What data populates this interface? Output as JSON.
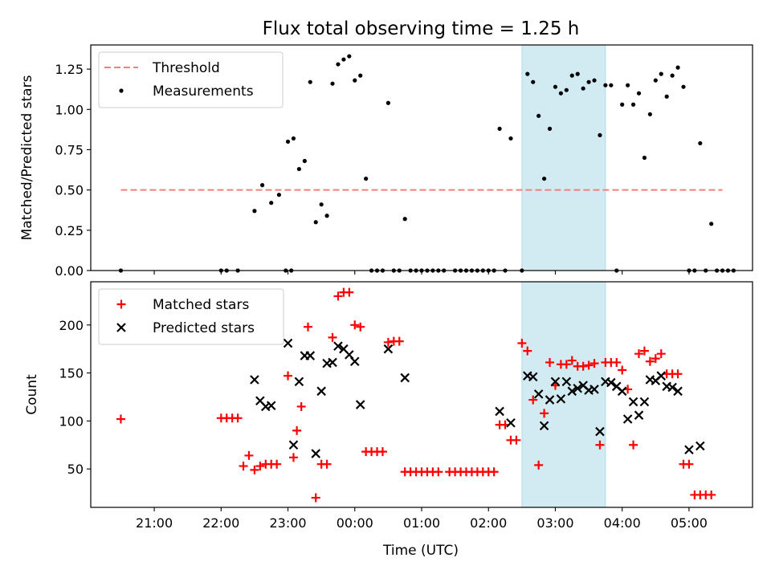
{
  "title": "Flux total observing time = 1.25 h",
  "x_axis": {
    "label": "Time (UTC)",
    "ticks": [
      {
        "t": "21:00",
        "v": 21.0
      },
      {
        "t": "22:00",
        "v": 22.0
      },
      {
        "t": "23:00",
        "v": 23.0
      },
      {
        "t": "00:00",
        "v": 24.0
      },
      {
        "t": "01:00",
        "v": 25.0
      },
      {
        "t": "02:00",
        "v": 26.0
      },
      {
        "t": "03:00",
        "v": 27.0
      },
      {
        "t": "04:00",
        "v": 28.0
      },
      {
        "t": "05:00",
        "v": 29.0
      }
    ],
    "range": [
      "20:03",
      "05:57"
    ]
  },
  "highlight": {
    "start": "02:30",
    "end": "03:45",
    "color": "#add8e6"
  },
  "chart_data": [
    {
      "type": "scatter",
      "ylabel": "Matched/Predicted stars",
      "ylim": [
        0,
        1.4
      ],
      "yticks": [
        "0.00",
        "0.25",
        "0.50",
        "0.75",
        "1.00",
        "1.25"
      ],
      "legend": {
        "position": "top-left",
        "entries": [
          "Threshold",
          "Measurements"
        ]
      },
      "threshold": {
        "name": "Threshold",
        "value": 0.5,
        "x": [
          "20:30",
          "05:30"
        ],
        "color": "#f08080",
        "style": "dashed"
      },
      "series": [
        {
          "name": "Measurements",
          "color": "#000000",
          "marker": "dot",
          "points": [
            [
              "20:30",
              0
            ],
            [
              "22:00",
              0
            ],
            [
              "22:05",
              0
            ],
            [
              "22:15",
              0
            ],
            [
              "22:30",
              0.37
            ],
            [
              "22:37",
              0.53
            ],
            [
              "22:45",
              0.42
            ],
            [
              "22:52",
              0.47
            ],
            [
              "22:58",
              0
            ],
            [
              "23:03",
              0
            ],
            [
              "23:00",
              0.8
            ],
            [
              "23:05",
              0.82
            ],
            [
              "23:10",
              0.63
            ],
            [
              "23:15",
              0.68
            ],
            [
              "23:20",
              1.17
            ],
            [
              "23:25",
              0.3
            ],
            [
              "23:30",
              0.41
            ],
            [
              "23:35",
              0.34
            ],
            [
              "23:40",
              1.16
            ],
            [
              "23:45",
              1.28
            ],
            [
              "23:50",
              1.31
            ],
            [
              "23:55",
              1.33
            ],
            [
              "00:00",
              1.18
            ],
            [
              "00:05",
              1.21
            ],
            [
              "00:10",
              0.57
            ],
            [
              "00:15",
              0
            ],
            [
              "00:20",
              0
            ],
            [
              "00:25",
              0
            ],
            [
              "00:30",
              1.04
            ],
            [
              "00:35",
              0
            ],
            [
              "00:40",
              0
            ],
            [
              "00:45",
              0.32
            ],
            [
              "00:50",
              0
            ],
            [
              "00:55",
              0
            ],
            [
              "01:00",
              0
            ],
            [
              "01:05",
              0
            ],
            [
              "01:10",
              0
            ],
            [
              "01:15",
              0
            ],
            [
              "01:20",
              0
            ],
            [
              "01:30",
              0
            ],
            [
              "01:35",
              0
            ],
            [
              "01:40",
              0
            ],
            [
              "01:45",
              0
            ],
            [
              "01:50",
              0
            ],
            [
              "01:55",
              0
            ],
            [
              "02:00",
              0
            ],
            [
              "02:05",
              0
            ],
            [
              "02:10",
              0.88
            ],
            [
              "02:15",
              0
            ],
            [
              "02:20",
              0.82
            ],
            [
              "02:30",
              0
            ],
            [
              "02:35",
              1.22
            ],
            [
              "02:40",
              1.17
            ],
            [
              "02:45",
              0.96
            ],
            [
              "02:50",
              0.57
            ],
            [
              "02:55",
              0.88
            ],
            [
              "03:00",
              1.14
            ],
            [
              "03:05",
              1.1
            ],
            [
              "03:10",
              1.12
            ],
            [
              "03:15",
              1.21
            ],
            [
              "03:20",
              1.22
            ],
            [
              "03:25",
              1.13
            ],
            [
              "03:30",
              1.17
            ],
            [
              "03:35",
              1.18
            ],
            [
              "03:40",
              0.84
            ],
            [
              "03:45",
              1.15
            ],
            [
              "03:50",
              1.15
            ],
            [
              "03:55",
              0
            ],
            [
              "04:00",
              1.03
            ],
            [
              "04:05",
              1.15
            ],
            [
              "04:10",
              1.03
            ],
            [
              "04:15",
              1.1
            ],
            [
              "04:20",
              0.7
            ],
            [
              "04:25",
              0.97
            ],
            [
              "04:30",
              1.18
            ],
            [
              "04:35",
              1.22
            ],
            [
              "04:40",
              1.08
            ],
            [
              "04:45",
              1.21
            ],
            [
              "04:50",
              1.26
            ],
            [
              "04:55",
              1.14
            ],
            [
              "05:00",
              0
            ],
            [
              "05:05",
              0
            ],
            [
              "05:10",
              0.79
            ],
            [
              "05:15",
              0
            ],
            [
              "05:20",
              0.29
            ],
            [
              "05:25",
              0
            ],
            [
              "05:30",
              0
            ],
            [
              "05:35",
              0
            ],
            [
              "05:40",
              0
            ]
          ]
        }
      ]
    },
    {
      "type": "scatter",
      "ylabel": "Count",
      "ylim": [
        10,
        245
      ],
      "yticks": [
        "50",
        "100",
        "150",
        "200"
      ],
      "legend": {
        "position": "top-left",
        "entries": [
          "Matched stars",
          "Predicted stars"
        ]
      },
      "series": [
        {
          "name": "Matched stars",
          "color": "#ff0000",
          "marker": "plus",
          "points": [
            [
              "20:30",
              102
            ],
            [
              "22:00",
              103
            ],
            [
              "22:05",
              103
            ],
            [
              "22:10",
              103
            ],
            [
              "22:15",
              103
            ],
            [
              "22:20",
              53
            ],
            [
              "22:25",
              64
            ],
            [
              "22:30",
              49
            ],
            [
              "22:35",
              53
            ],
            [
              "22:40",
              55
            ],
            [
              "22:45",
              55
            ],
            [
              "22:50",
              55
            ],
            [
              "23:00",
              147
            ],
            [
              "23:05",
              62
            ],
            [
              "23:08",
              90
            ],
            [
              "23:12",
              115
            ],
            [
              "23:18",
              198
            ],
            [
              "23:25",
              20
            ],
            [
              "23:30",
              55
            ],
            [
              "23:35",
              55
            ],
            [
              "23:40",
              187
            ],
            [
              "23:45",
              230
            ],
            [
              "23:50",
              234
            ],
            [
              "23:55",
              234
            ],
            [
              "00:00",
              200
            ],
            [
              "00:05",
              198
            ],
            [
              "00:10",
              68
            ],
            [
              "00:15",
              68
            ],
            [
              "00:20",
              68
            ],
            [
              "00:25",
              68
            ],
            [
              "00:30",
              182
            ],
            [
              "00:35",
              183
            ],
            [
              "00:40",
              183
            ],
            [
              "00:45",
              47
            ],
            [
              "00:50",
              47
            ],
            [
              "00:55",
              47
            ],
            [
              "01:00",
              47
            ],
            [
              "01:05",
              47
            ],
            [
              "01:10",
              47
            ],
            [
              "01:15",
              47
            ],
            [
              "01:25",
              47
            ],
            [
              "01:30",
              47
            ],
            [
              "01:35",
              47
            ],
            [
              "01:40",
              47
            ],
            [
              "01:45",
              47
            ],
            [
              "01:50",
              47
            ],
            [
              "01:55",
              47
            ],
            [
              "02:00",
              47
            ],
            [
              "02:05",
              47
            ],
            [
              "02:10",
              96
            ],
            [
              "02:15",
              96
            ],
            [
              "02:20",
              80
            ],
            [
              "02:25",
              80
            ],
            [
              "02:30",
              181
            ],
            [
              "02:35",
              173
            ],
            [
              "02:40",
              122
            ],
            [
              "02:45",
              54
            ],
            [
              "02:50",
              108
            ],
            [
              "02:55",
              161
            ],
            [
              "03:00",
              137
            ],
            [
              "03:05",
              159
            ],
            [
              "03:10",
              159
            ],
            [
              "03:15",
              163
            ],
            [
              "03:20",
              157
            ],
            [
              "03:25",
              157
            ],
            [
              "03:30",
              158
            ],
            [
              "03:35",
              160
            ],
            [
              "03:40",
              75
            ],
            [
              "03:45",
              161
            ],
            [
              "03:50",
              161
            ],
            [
              "03:55",
              161
            ],
            [
              "04:00",
              153
            ],
            [
              "04:05",
              133
            ],
            [
              "04:10",
              75
            ],
            [
              "04:15",
              170
            ],
            [
              "04:20",
              173
            ],
            [
              "04:25",
              162
            ],
            [
              "04:30",
              165
            ],
            [
              "04:35",
              170
            ],
            [
              "04:40",
              149
            ],
            [
              "04:45",
              149
            ],
            [
              "04:50",
              149
            ],
            [
              "04:55",
              55
            ],
            [
              "05:00",
              55
            ],
            [
              "05:05",
              23
            ],
            [
              "05:10",
              23
            ],
            [
              "05:15",
              23
            ],
            [
              "05:20",
              23
            ]
          ]
        },
        {
          "name": "Predicted stars",
          "color": "#000000",
          "marker": "x",
          "points": [
            [
              "22:30",
              143
            ],
            [
              "22:35",
              121
            ],
            [
              "22:40",
              115
            ],
            [
              "22:45",
              116
            ],
            [
              "23:00",
              181
            ],
            [
              "23:05",
              75
            ],
            [
              "23:10",
              141
            ],
            [
              "23:15",
              168
            ],
            [
              "23:20",
              168
            ],
            [
              "23:25",
              66
            ],
            [
              "23:30",
              131
            ],
            [
              "23:35",
              160
            ],
            [
              "23:40",
              161
            ],
            [
              "23:45",
              178
            ],
            [
              "23:50",
              175
            ],
            [
              "23:55",
              169
            ],
            [
              "00:00",
              162
            ],
            [
              "00:05",
              117
            ],
            [
              "00:30",
              175
            ],
            [
              "00:45",
              145
            ],
            [
              "02:10",
              110
            ],
            [
              "02:20",
              98
            ],
            [
              "02:35",
              147
            ],
            [
              "02:40",
              146
            ],
            [
              "02:45",
              128
            ],
            [
              "02:50",
              95
            ],
            [
              "02:55",
              122
            ],
            [
              "03:00",
              141
            ],
            [
              "03:05",
              123
            ],
            [
              "03:10",
              141
            ],
            [
              "03:15",
              131
            ],
            [
              "03:20",
              134
            ],
            [
              "03:25",
              137
            ],
            [
              "03:30",
              132
            ],
            [
              "03:35",
              133
            ],
            [
              "03:40",
              89
            ],
            [
              "03:45",
              141
            ],
            [
              "03:50",
              140
            ],
            [
              "03:55",
              136
            ],
            [
              "04:00",
              131
            ],
            [
              "04:05",
              102
            ],
            [
              "04:10",
              120
            ],
            [
              "04:15",
              106
            ],
            [
              "04:20",
              120
            ],
            [
              "04:25",
              143
            ],
            [
              "04:30",
              142
            ],
            [
              "04:35",
              147
            ],
            [
              "04:40",
              136
            ],
            [
              "04:45",
              135
            ],
            [
              "04:50",
              131
            ],
            [
              "05:00",
              70
            ],
            [
              "05:10",
              74
            ]
          ]
        }
      ]
    }
  ]
}
